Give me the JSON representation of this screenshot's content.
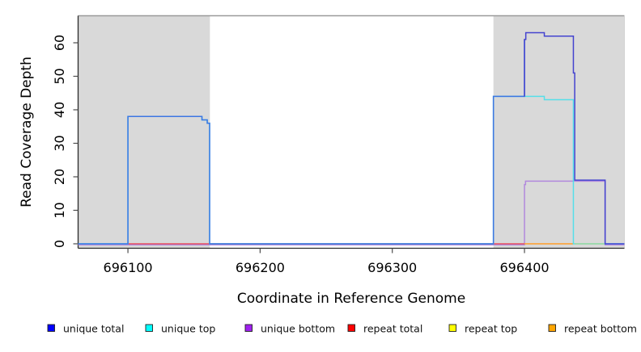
{
  "figure": {
    "background": "#ffffff",
    "plot_bg_highlight": "#d9d9d9"
  },
  "chart_data": {
    "type": "line",
    "step": true,
    "title": "",
    "xlabel": "Coordinate in Reference Genome",
    "ylabel": "Read Coverage Depth",
    "xlim": [
      696062.3,
      696475.6
    ],
    "ylim": [
      -1.33,
      68.07
    ],
    "x_ticks": [
      696100,
      696200,
      696300,
      696400
    ],
    "x_tick_labels": [
      "696100",
      "696200",
      "696300",
      "696400"
    ],
    "y_ticks": [
      0,
      10,
      20,
      30,
      40,
      50,
      60
    ],
    "y_tick_labels": [
      "0",
      "10",
      "20",
      "30",
      "40",
      "50",
      "60"
    ],
    "grid": false,
    "legend_position": "bottom",
    "highlight_bands": [
      {
        "x1": 696062.3,
        "x2": 696162.0,
        "color": "#d9d9d9"
      },
      {
        "x1": 696376.5,
        "x2": 696475.6,
        "color": "#d9d9d9"
      }
    ],
    "series": [
      {
        "name": "unique bottom",
        "line_color": "#b289dd",
        "render_offset_y": 1.3,
        "points": [
          [
            696062.3,
            0
          ],
          [
            696400,
            0
          ],
          [
            696400,
            18
          ],
          [
            696400.8,
            18
          ],
          [
            696400.8,
            19
          ],
          [
            696461,
            19
          ],
          [
            696461,
            0
          ],
          [
            696475.6,
            0
          ]
        ]
      },
      {
        "name": "repeat total",
        "line_color": "#e8505f",
        "points": [
          [
            696100,
            0
          ],
          [
            696400,
            0
          ]
        ]
      },
      {
        "name": "repeat bottom",
        "line_color": "#ff9e28",
        "points": [
          [
            696400,
            0
          ],
          [
            696437,
            0
          ]
        ]
      },
      {
        "name": "unique top",
        "line_color": "#55dfe9",
        "points": [
          [
            696062.3,
            0
          ],
          [
            696100,
            0
          ],
          [
            696100,
            38
          ],
          [
            696156,
            38
          ],
          [
            696156,
            37
          ],
          [
            696160,
            37
          ],
          [
            696160,
            36
          ],
          [
            696161.8,
            36
          ],
          [
            696161.8,
            0
          ],
          [
            696376.5,
            0
          ],
          [
            696376.5,
            44
          ],
          [
            696415,
            44
          ],
          [
            696415,
            43
          ],
          [
            696437,
            43
          ],
          [
            696437,
            0
          ],
          [
            696475.6,
            0
          ]
        ]
      },
      {
        "name": "repeat top",
        "line_color": "#a0d89e",
        "points": [
          [
            696438,
            0
          ],
          [
            696460.5,
            0
          ]
        ]
      },
      {
        "name": "unique total",
        "line_color": "#3d76e3",
        "line_color_right": "#4443cf",
        "color_split_bp": 696400,
        "points": [
          [
            696062.3,
            0
          ],
          [
            696100,
            0
          ],
          [
            696100,
            38
          ],
          [
            696156,
            38
          ],
          [
            696156,
            37
          ],
          [
            696160,
            37
          ],
          [
            696160,
            36
          ],
          [
            696161.8,
            36
          ],
          [
            696161.8,
            0
          ],
          [
            696376.5,
            0
          ],
          [
            696376.5,
            44
          ],
          [
            696400,
            44
          ],
          [
            696400,
            61
          ],
          [
            696401,
            61
          ],
          [
            696401,
            63
          ],
          [
            696415,
            63
          ],
          [
            696415,
            62
          ],
          [
            696437,
            62
          ],
          [
            696437,
            51
          ],
          [
            696438,
            51
          ],
          [
            696438,
            19
          ],
          [
            696461,
            19
          ],
          [
            696461,
            0
          ],
          [
            696475.6,
            0
          ]
        ]
      }
    ],
    "legend": [
      {
        "label": "unique total",
        "color": "#0000ff"
      },
      {
        "label": "unique top",
        "color": "#00ffff"
      },
      {
        "label": "unique bottom",
        "color": "#a020f0"
      },
      {
        "label": "repeat total",
        "color": "#ff0000"
      },
      {
        "label": "repeat top",
        "color": "#ffff00"
      },
      {
        "label": "repeat bottom",
        "color": "#ffa500"
      }
    ]
  }
}
